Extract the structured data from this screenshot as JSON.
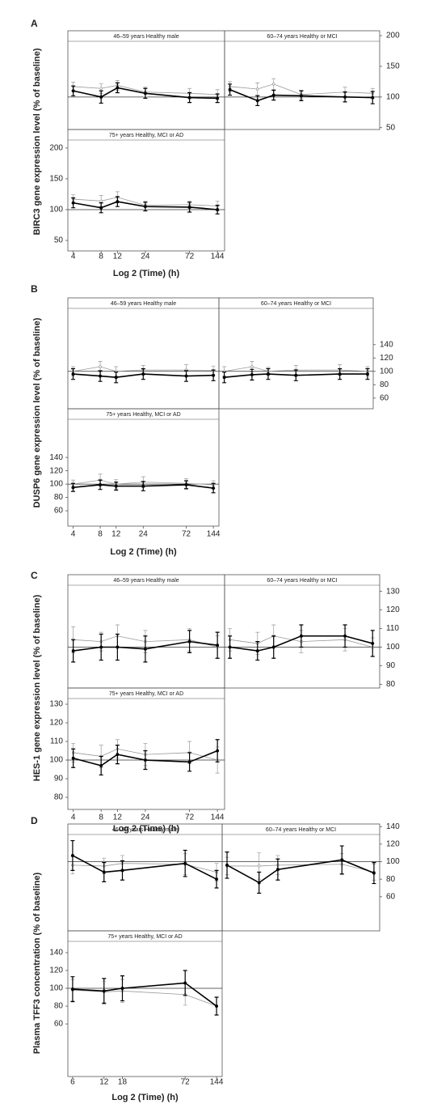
{
  "chart_data": [
    {
      "type": "line",
      "label": "A",
      "ylabel": "BIRC3 gene expression level (% of baseline)",
      "xlabel": "Log 2 (Time) (h)",
      "xscale": "log",
      "xlim": [
        3.5,
        172
      ],
      "refline": 100,
      "panels": [
        {
          "title": "46–59 years Healthy male",
          "x": [
            4,
            8,
            12,
            24,
            72,
            144
          ],
          "ylim": [
            47,
            208
          ],
          "series": [
            {
              "color": "#000000",
              "values": [
                110,
                100,
                115,
                106,
                99,
                98
              ],
              "errors": [
                8,
                10,
                8,
                8,
                8,
                7
              ]
            },
            {
              "color": "#999999",
              "values": [
                117,
                114,
                119,
                108,
                106,
                104
              ],
              "errors": [
                7,
                8,
                8,
                8,
                8,
                8
              ]
            }
          ]
        },
        {
          "title": "60–74 years Healthy or MCI",
          "x": [
            4,
            8,
            12,
            24,
            72,
            144
          ],
          "ylim": [
            47,
            208
          ],
          "yticks": [
            50,
            100,
            150,
            200
          ],
          "series": [
            {
              "color": "#000000",
              "values": [
                112,
                94,
                103,
                102,
                100,
                99
              ],
              "errors": [
                9,
                8,
                8,
                8,
                8,
                10
              ]
            },
            {
              "color": "#999999",
              "values": [
                117,
                113,
                121,
                104,
                108,
                106
              ],
              "errors": [
                8,
                10,
                9,
                7,
                8,
                8
              ]
            }
          ]
        },
        {
          "title": "75+ years Healthy, MCI or AD",
          "x": [
            4,
            8,
            12,
            24,
            72,
            144
          ],
          "ylim": [
            33,
            230
          ],
          "yticks": [
            50,
            100,
            150,
            200
          ],
          "xticks": [
            4,
            8,
            12,
            24,
            72,
            144
          ],
          "series": [
            {
              "color": "#000000",
              "values": [
                111,
                103,
                113,
                105,
                104,
                100
              ],
              "errors": [
                8,
                8,
                8,
                7,
                8,
                7
              ]
            },
            {
              "color": "#999999",
              "values": [
                117,
                114,
                120,
                107,
                108,
                106
              ],
              "errors": [
                7,
                9,
                9,
                7,
                6,
                8
              ]
            }
          ]
        }
      ]
    },
    {
      "type": "line",
      "label": "B",
      "ylabel": "DUSP6 gene expression level (% of baseline)",
      "xlabel": "Log 2 (Time) (h)",
      "xscale": "log",
      "xlim": [
        3.5,
        166
      ],
      "refline": 100,
      "panels": [
        {
          "title": "46–59 years Healthy male",
          "x": [
            4,
            8,
            12,
            24,
            72,
            144
          ],
          "ylim": [
            44,
            210
          ],
          "series": [
            {
              "color": "#000000",
              "values": [
                96,
                93,
                91,
                96,
                93,
                94
              ],
              "errors": [
                8,
                8,
                8,
                8,
                8,
                8
              ]
            },
            {
              "color": "#999999",
              "values": [
                100,
                107,
                100,
                102,
                102,
                101
              ],
              "errors": [
                7,
                8,
                7,
                7,
                8,
                7
              ]
            }
          ]
        },
        {
          "title": "60–74 years Healthy or MCI",
          "x": [
            4,
            8,
            12,
            24,
            72,
            144
          ],
          "ylim": [
            44,
            210
          ],
          "yticks": [
            60,
            80,
            100,
            120,
            140
          ],
          "series": [
            {
              "color": "#000000",
              "values": [
                91,
                95,
                96,
                94,
                96,
                96
              ],
              "errors": [
                8,
                8,
                8,
                8,
                8,
                8
              ]
            },
            {
              "color": "#999999",
              "values": [
                100,
                107,
                100,
                102,
                102,
                100
              ],
              "errors": [
                7,
                8,
                6,
                7,
                8,
                7
              ]
            }
          ]
        },
        {
          "title": "75+ years Healthy, MCI or AD",
          "x": [
            4,
            8,
            12,
            24,
            72,
            144
          ],
          "ylim": [
            37,
            213
          ],
          "yticks": [
            60,
            80,
            100,
            120,
            140
          ],
          "xticks": [
            4,
            8,
            12,
            24,
            72,
            144
          ],
          "series": [
            {
              "color": "#000000",
              "values": [
                95,
                99,
                97,
                97,
                99,
                94
              ],
              "errors": [
                6,
                7,
                6,
                7,
                6,
                7
              ]
            },
            {
              "color": "#999999",
              "values": [
                100,
                106,
                100,
                103,
                101,
                99
              ],
              "errors": [
                6,
                9,
                7,
                8,
                7,
                6
              ]
            }
          ]
        }
      ]
    },
    {
      "type": "line",
      "label": "C",
      "ylabel": "HES-1 gene expression level (% of baseline)",
      "xlabel": "Log 2 (Time) (h)",
      "xscale": "log",
      "xlim": [
        3.5,
        172
      ],
      "refline": 100,
      "panels": [
        {
          "title": "46–59 years Healthy male",
          "x": [
            4,
            8,
            12,
            24,
            72,
            144
          ],
          "ylim": [
            78,
            139
          ],
          "series": [
            {
              "color": "#000000",
              "values": [
                98,
                100,
                100,
                99,
                103,
                101
              ],
              "errors": [
                6,
                7,
                7,
                7,
                6,
                7
              ]
            },
            {
              "color": "#999999",
              "values": [
                104,
                103,
                106,
                103,
                104,
                100
              ],
              "errors": [
                7,
                5,
                6,
                6,
                6,
                6
              ]
            }
          ]
        },
        {
          "title": "60–74 years Healthy or MCI",
          "x": [
            4,
            8,
            12,
            24,
            72,
            144
          ],
          "ylim": [
            78,
            139
          ],
          "yticks": [
            80,
            90,
            100,
            110,
            120,
            130
          ],
          "series": [
            {
              "color": "#000000",
              "values": [
                100,
                98,
                100,
                106,
                106,
                102
              ],
              "errors": [
                6,
                5,
                6,
                6,
                6,
                7
              ]
            },
            {
              "color": "#999999",
              "values": [
                104,
                102,
                106,
                103,
                104,
                100
              ],
              "errors": [
                6,
                6,
                6,
                6,
                6,
                5
              ]
            }
          ]
        },
        {
          "title": "75+ years Healthy, MCI or AD",
          "x": [
            4,
            8,
            12,
            24,
            72,
            144
          ],
          "ylim": [
            73.5,
            138.7
          ],
          "yticks": [
            80,
            90,
            100,
            110,
            120,
            130
          ],
          "xticks": [
            4,
            8,
            12,
            24,
            72,
            144
          ],
          "series": [
            {
              "color": "#000000",
              "values": [
                101,
                97,
                103,
                100,
                99,
                105
              ],
              "errors": [
                5,
                5,
                5,
                5,
                5,
                6
              ]
            },
            {
              "color": "#999999",
              "values": [
                104,
                102,
                106,
                103,
                104,
                100
              ],
              "errors": [
                5,
                6,
                5,
                6,
                6,
                7
              ]
            }
          ]
        }
      ]
    },
    {
      "type": "line",
      "label": "D",
      "ylabel": "Plasma TFF3 concentration (% of baseline)",
      "xlabel": "Log 2 (Time) (h)",
      "xscale": "log",
      "xlim": [
        5.4,
        163
      ],
      "refline": 100,
      "panels": [
        {
          "title": "46–59 years Healthy male",
          "x": [
            6,
            12,
            18,
            72,
            144
          ],
          "ylim": [
            21,
            143
          ],
          "series": [
            {
              "color": "#000000",
              "values": [
                107,
                88,
                90,
                98,
                80
              ],
              "errors": [
                17,
                11,
                11,
                15,
                10
              ]
            },
            {
              "color": "#999999",
              "values": [
                96,
                95,
                98,
                97,
                88
              ],
              "errors": [
                10,
                9,
                9,
                12,
                10
              ]
            }
          ]
        },
        {
          "title": "60–74 years Healthy or MCI",
          "x": [
            6,
            12,
            18,
            72,
            144
          ],
          "ylim": [
            21,
            143
          ],
          "yticks": [
            60,
            80,
            100,
            120,
            140
          ],
          "series": [
            {
              "color": "#000000",
              "values": [
                96,
                76,
                91,
                102,
                87
              ],
              "errors": [
                15,
                12,
                12,
                16,
                12
              ]
            },
            {
              "color": "#999999",
              "values": [
                95,
                95,
                96,
                97,
                88
              ],
              "errors": [
                10,
                15,
                11,
                12,
                9
              ]
            }
          ]
        },
        {
          "title": "75+ years Healthy, MCI or AD",
          "x": [
            6,
            12,
            18,
            72,
            144
          ],
          "ylim": [
            1,
            164.5
          ],
          "yticks": [
            60,
            80,
            100,
            120,
            140
          ],
          "xticks": [
            6,
            12,
            18,
            72,
            144
          ],
          "series": [
            {
              "color": "#000000",
              "values": [
                99,
                97,
                100,
                106,
                80
              ],
              "errors": [
                14,
                14,
                14,
                14,
                10
              ]
            },
            {
              "color": "#999999",
              "values": [
                98,
                96,
                97,
                93,
                80
              ],
              "errors": [
                12,
                12,
                13,
                12,
                10
              ]
            }
          ]
        }
      ]
    }
  ]
}
